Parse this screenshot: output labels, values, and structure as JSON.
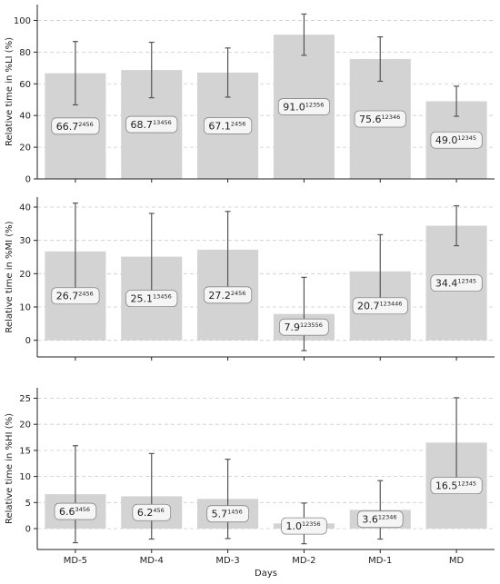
{
  "chart_data": [
    {
      "type": "bar",
      "categories": [
        "MD-5",
        "MD-4",
        "MD-3",
        "MD-2",
        "MD-1",
        "MD"
      ],
      "values": [
        66.7,
        68.7,
        67.1,
        91.0,
        75.6,
        49.0
      ],
      "errors": [
        20,
        17.5,
        15.5,
        13,
        14,
        9.5
      ],
      "value_labels": [
        "66.7",
        "68.7",
        "67.1",
        "91.0",
        "75.6",
        "49.0"
      ],
      "superscripts": [
        "2456",
        "13456",
        "2456",
        "12356",
        "12346",
        "12345"
      ],
      "ylabel": "Relative time in %LI (%)",
      "ylim": [
        0,
        110
      ],
      "yticks": [
        0,
        20,
        40,
        60,
        80,
        100
      ],
      "grid": true
    },
    {
      "type": "bar",
      "categories": [
        "MD-5",
        "MD-4",
        "MD-3",
        "MD-2",
        "MD-1",
        "MD"
      ],
      "values": [
        26.7,
        25.1,
        27.2,
        7.9,
        20.7,
        34.4
      ],
      "errors": [
        14.5,
        13,
        11.5,
        11,
        11,
        6
      ],
      "value_labels": [
        "26.7",
        "25.1",
        "27.2",
        "7.9",
        "20.7",
        "34.4"
      ],
      "superscripts": [
        "2456",
        "13456",
        "2456",
        "123556",
        "123446",
        "12345"
      ],
      "ylabel": "Relative time in %MI (%)",
      "ylim": [
        -5,
        43
      ],
      "yticks": [
        0,
        10,
        20,
        30,
        40
      ],
      "grid": true
    },
    {
      "type": "bar",
      "categories": [
        "MD-5",
        "MD-4",
        "MD-3",
        "MD-2",
        "MD-1",
        "MD"
      ],
      "values": [
        6.6,
        6.2,
        5.7,
        1.0,
        3.6,
        16.5
      ],
      "errors": [
        9.3,
        8.2,
        7.6,
        3.9,
        5.6,
        8.6
      ],
      "value_labels": [
        "6.6",
        "6.2",
        "5.7",
        "1.0",
        "3.6",
        "16.5"
      ],
      "superscripts": [
        "3456",
        "456",
        "1456",
        "12356",
        "12346",
        "12345"
      ],
      "ylabel": "Relative time in %HI (%)",
      "ylim": [
        -4,
        27
      ],
      "yticks": [
        0,
        5,
        10,
        15,
        20,
        25
      ],
      "xlabel": "Days",
      "grid": true
    }
  ],
  "colors": {
    "bar": "#d3d3d3",
    "error": "#555555",
    "grid": "#cccccc",
    "label_box_fill": "#f5f5f5",
    "label_box_stroke": "#888888"
  }
}
